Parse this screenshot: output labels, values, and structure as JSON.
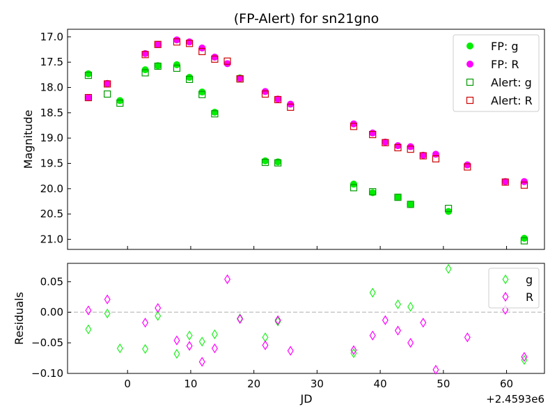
{
  "chart_data": [
    {
      "type": "scatter",
      "title": "(FP-Alert) for sn21gno",
      "xlabel": "",
      "ylabel": "Magnitude",
      "xlim": [
        -9.5,
        66
      ],
      "ylim": [
        21.2,
        16.85
      ],
      "y_inverted": true,
      "yticks": [
        "17.0",
        "17.5",
        "18.0",
        "18.5",
        "19.0",
        "19.5",
        "20.0",
        "20.5",
        "21.0"
      ],
      "legend_position": "top-right",
      "series": [
        {
          "name": "FP: g",
          "marker": "filled-circle",
          "color": "#00ee00",
          "points": [
            [
              -6.2,
              17.73
            ],
            [
              -3.2,
              17.93
            ],
            [
              -1.2,
              18.26
            ],
            [
              2.8,
              17.65
            ],
            [
              4.8,
              17.57
            ],
            [
              7.8,
              17.55
            ],
            [
              9.8,
              17.8
            ],
            [
              11.8,
              18.09
            ],
            [
              13.8,
              18.49
            ],
            [
              17.8,
              17.81
            ],
            [
              21.8,
              19.45
            ],
            [
              23.8,
              19.47
            ],
            [
              35.8,
              19.91
            ],
            [
              38.8,
              20.08
            ],
            [
              42.8,
              20.17
            ],
            [
              44.8,
              20.31
            ],
            [
              50.8,
              20.45
            ],
            [
              62.8,
              20.98
            ]
          ]
        },
        {
          "name": "FP: R",
          "marker": "filled-circle",
          "color": "#ff00ff",
          "points": [
            [
              -6.2,
              18.2
            ],
            [
              -3.2,
              17.92
            ],
            [
              2.8,
              17.33
            ],
            [
              4.8,
              17.15
            ],
            [
              7.8,
              17.06
            ],
            [
              9.8,
              17.1
            ],
            [
              11.8,
              17.22
            ],
            [
              13.8,
              17.4
            ],
            [
              15.8,
              17.53
            ],
            [
              17.8,
              17.82
            ],
            [
              21.8,
              18.08
            ],
            [
              23.8,
              18.23
            ],
            [
              25.8,
              18.33
            ],
            [
              35.8,
              18.72
            ],
            [
              38.8,
              18.9
            ],
            [
              40.8,
              19.08
            ],
            [
              42.8,
              19.15
            ],
            [
              44.8,
              19.17
            ],
            [
              46.8,
              19.34
            ],
            [
              48.8,
              19.32
            ],
            [
              53.8,
              19.53
            ],
            [
              59.8,
              19.86
            ],
            [
              62.8,
              19.86
            ]
          ]
        },
        {
          "name": "Alert: g",
          "marker": "open-square",
          "color": "#009900",
          "points": [
            [
              -6.2,
              17.76
            ],
            [
              -3.2,
              18.13
            ],
            [
              -1.2,
              18.31
            ],
            [
              2.8,
              17.71
            ],
            [
              4.8,
              17.58
            ],
            [
              7.8,
              17.62
            ],
            [
              9.8,
              17.84
            ],
            [
              11.8,
              18.14
            ],
            [
              13.8,
              18.52
            ],
            [
              17.8,
              17.83
            ],
            [
              21.8,
              19.48
            ],
            [
              23.8,
              19.49
            ],
            [
              35.8,
              19.98
            ],
            [
              38.8,
              20.06
            ],
            [
              42.8,
              20.17
            ],
            [
              44.8,
              20.31
            ],
            [
              50.8,
              20.39
            ],
            [
              62.8,
              21.03
            ]
          ]
        },
        {
          "name": "Alert: R",
          "marker": "open-square",
          "color": "#cc0000",
          "points": [
            [
              -6.2,
              18.2
            ],
            [
              -3.2,
              17.93
            ],
            [
              2.8,
              17.35
            ],
            [
              4.8,
              17.15
            ],
            [
              7.8,
              17.1
            ],
            [
              9.8,
              17.13
            ],
            [
              11.8,
              17.29
            ],
            [
              13.8,
              17.44
            ],
            [
              15.8,
              17.48
            ],
            [
              17.8,
              17.83
            ],
            [
              21.8,
              18.13
            ],
            [
              23.8,
              18.24
            ],
            [
              25.8,
              18.39
            ],
            [
              35.8,
              18.77
            ],
            [
              38.8,
              18.93
            ],
            [
              40.8,
              19.09
            ],
            [
              42.8,
              19.19
            ],
            [
              44.8,
              19.22
            ],
            [
              46.8,
              19.35
            ],
            [
              48.8,
              19.41
            ],
            [
              53.8,
              19.57
            ],
            [
              59.8,
              19.87
            ],
            [
              62.8,
              19.93
            ]
          ]
        }
      ]
    },
    {
      "type": "scatter",
      "title": "",
      "xlabel": "JD",
      "x_offset_label": "+2.4593e6",
      "ylabel": "Residuals",
      "xlim": [
        -9.5,
        66
      ],
      "ylim": [
        -0.1,
        0.08
      ],
      "xticks": [
        "0",
        "10",
        "20",
        "30",
        "40",
        "50",
        "60"
      ],
      "yticks": [
        "0.05",
        "0.00",
        "−0.05",
        "−0.10"
      ],
      "reference_line": {
        "y": 0,
        "style": "dashed",
        "color": "#cccccc"
      },
      "legend_position": "top-right",
      "series": [
        {
          "name": "g",
          "marker": "open-diamond",
          "color": "#22ee22",
          "points": [
            [
              -6.2,
              -0.028
            ],
            [
              -3.2,
              -0.002
            ],
            [
              -1.2,
              -0.059
            ],
            [
              2.8,
              -0.06
            ],
            [
              4.8,
              -0.006
            ],
            [
              7.8,
              -0.068
            ],
            [
              9.8,
              -0.038
            ],
            [
              11.8,
              -0.048
            ],
            [
              13.8,
              -0.036
            ],
            [
              17.8,
              -0.01
            ],
            [
              21.8,
              -0.041
            ],
            [
              23.8,
              -0.015
            ],
            [
              35.8,
              -0.067
            ],
            [
              38.8,
              0.032
            ],
            [
              42.8,
              0.013
            ],
            [
              44.8,
              0.009
            ],
            [
              50.8,
              0.071
            ],
            [
              62.8,
              -0.078
            ]
          ]
        },
        {
          "name": "R",
          "marker": "open-diamond",
          "color": "#ff00ff",
          "points": [
            [
              -6.2,
              0.003
            ],
            [
              -3.2,
              0.021
            ],
            [
              2.8,
              -0.017
            ],
            [
              4.8,
              0.007
            ],
            [
              7.8,
              -0.046
            ],
            [
              9.8,
              -0.055
            ],
            [
              11.8,
              -0.081
            ],
            [
              13.8,
              -0.059
            ],
            [
              15.8,
              0.054
            ],
            [
              17.8,
              -0.011
            ],
            [
              21.8,
              -0.054
            ],
            [
              23.8,
              -0.013
            ],
            [
              25.8,
              -0.063
            ],
            [
              35.8,
              -0.062
            ],
            [
              38.8,
              -0.038
            ],
            [
              40.8,
              -0.013
            ],
            [
              42.8,
              -0.03
            ],
            [
              44.8,
              -0.05
            ],
            [
              46.8,
              -0.017
            ],
            [
              48.8,
              -0.094
            ],
            [
              53.8,
              -0.041
            ],
            [
              59.8,
              0.004
            ],
            [
              62.8,
              -0.073
            ]
          ]
        }
      ]
    }
  ]
}
